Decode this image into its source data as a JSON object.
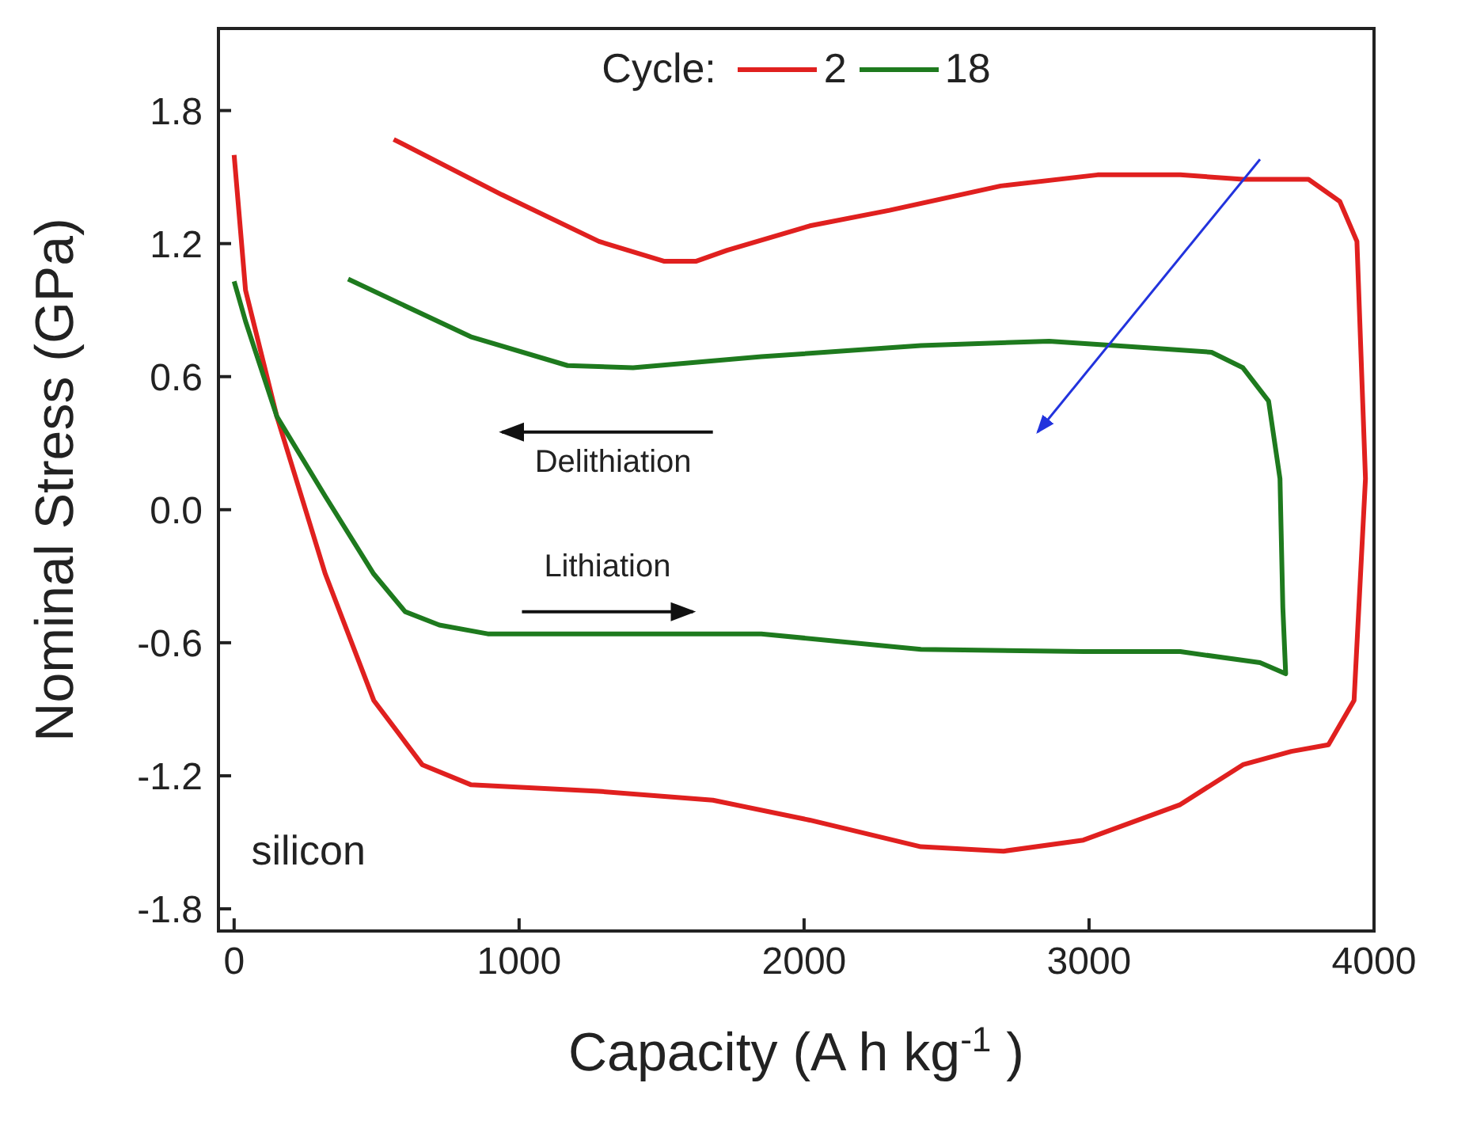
{
  "chart_data": {
    "type": "line",
    "xlabel": "Capacity (A h kg$^{-1}$)",
    "ylabel": "Nominal Stress (GPa)",
    "legend_title": "Cycle:",
    "legend": "top",
    "xlim": [
      -55,
      4000
    ],
    "xticks": [
      0,
      1000,
      2000,
      3000,
      4000
    ],
    "ylim": [
      -1.9,
      2.17
    ],
    "yticks": [
      1.8,
      1.2,
      0.6,
      {
        "value": 0,
        "label": "0.0"
      },
      -0.6,
      -1.2,
      -1.8
    ],
    "annotations": [
      "Delithiation",
      "Lithiation",
      "silicon"
    ],
    "series": [
      {
        "name": "2",
        "color": "#e0201f",
        "x": [
          0,
          40,
          150,
          320,
          490,
          660,
          830,
          1280,
          1680,
          2020,
          2410,
          2700,
          2980,
          3320,
          3540,
          3710,
          3840,
          3930,
          3970,
          3940,
          3880,
          3770,
          3540,
          3320,
          3030,
          2690,
          2300,
          2020,
          1730,
          1620,
          1510,
          1280,
          940,
          560
        ],
        "values": [
          1.6,
          0.99,
          0.42,
          -0.29,
          -0.86,
          -1.15,
          -1.24,
          -1.27,
          -1.31,
          -1.4,
          -1.52,
          -1.54,
          -1.49,
          -1.33,
          -1.15,
          -1.09,
          -1.06,
          -0.86,
          0.14,
          1.21,
          1.39,
          1.49,
          1.49,
          1.51,
          1.51,
          1.46,
          1.35,
          1.28,
          1.17,
          1.12,
          1.12,
          1.21,
          1.42,
          1.67
        ]
      },
      {
        "name": "18",
        "color": "#1e7a1e",
        "x": [
          0,
          40,
          150,
          320,
          490,
          600,
          720,
          890,
          1280,
          1850,
          2410,
          2980,
          3320,
          3600,
          3690,
          3680,
          3670,
          3630,
          3540,
          3430,
          3090,
          2860,
          2410,
          1850,
          1400,
          1170,
          830,
          400
        ],
        "values": [
          1.03,
          0.85,
          0.42,
          0.06,
          -0.29,
          -0.46,
          -0.52,
          -0.56,
          -0.56,
          -0.56,
          -0.63,
          -0.64,
          -0.64,
          -0.69,
          -0.74,
          -0.44,
          0.14,
          0.49,
          0.64,
          0.71,
          0.74,
          0.76,
          0.74,
          0.69,
          0.64,
          0.65,
          0.78,
          1.04
        ]
      }
    ]
  }
}
